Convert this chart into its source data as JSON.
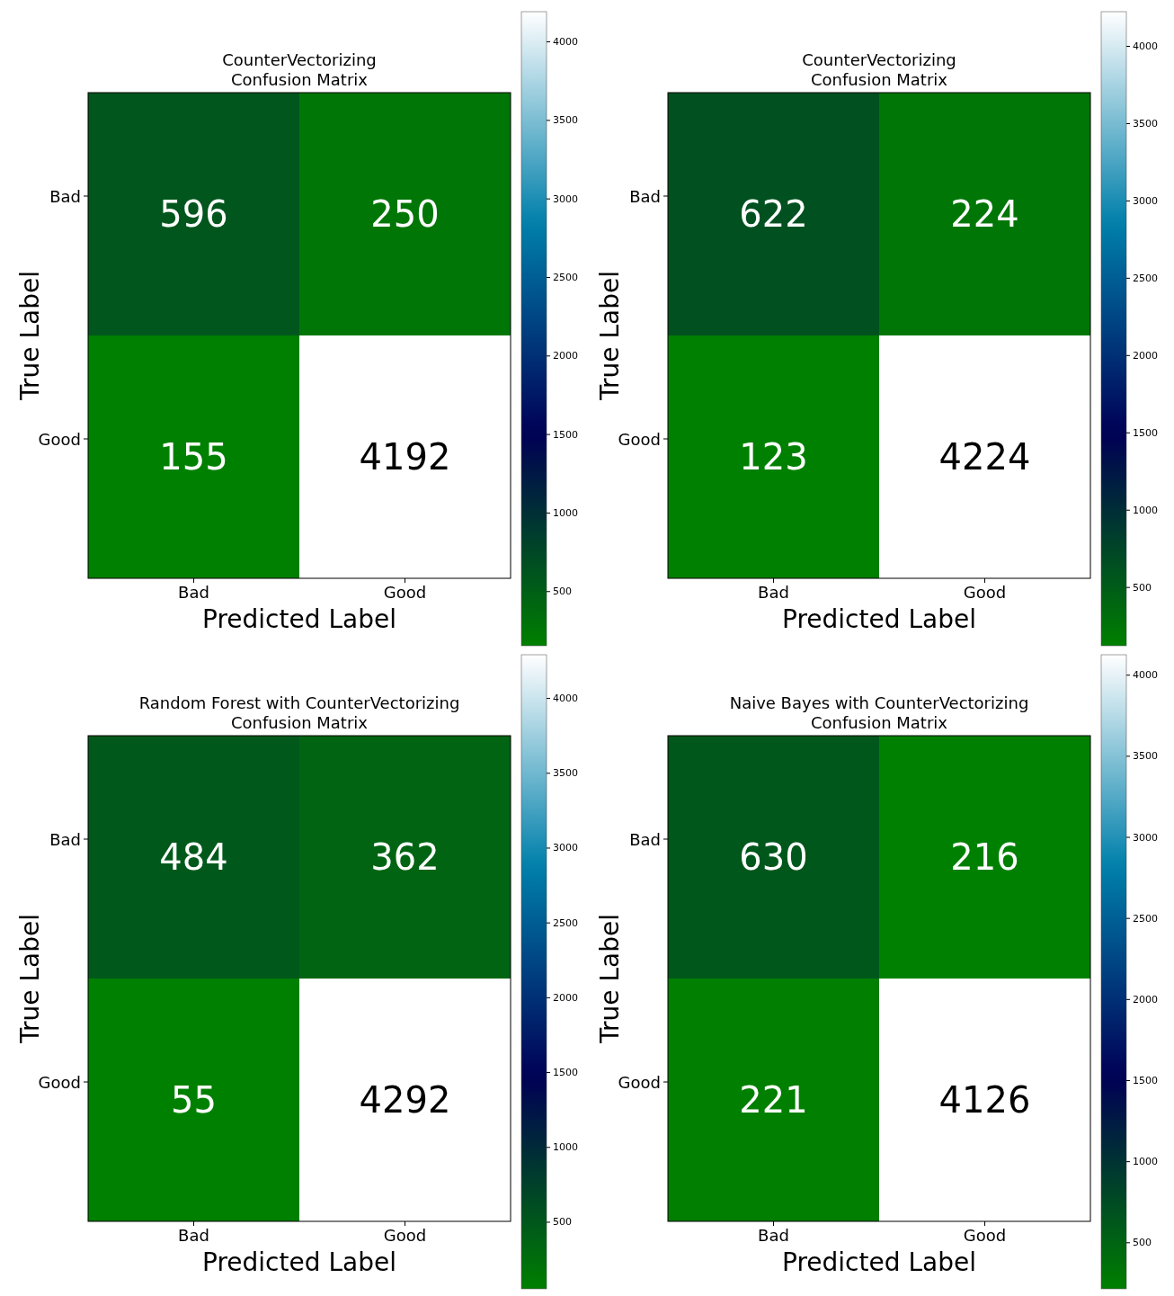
{
  "chart_data": [
    {
      "type": "heatmap",
      "title": "CounterVectorizing\nConfusion Matrix",
      "xlabel": "Predicted Label",
      "ylabel": "True Label",
      "categories": [
        "Bad",
        "Good"
      ],
      "y_categories": [
        "Bad",
        "Good"
      ],
      "cells": [
        [
          596,
          250
        ],
        [
          155,
          4192
        ]
      ],
      "clim": [
        155,
        4192
      ],
      "cticks": [
        500,
        1000,
        1500,
        2000,
        2500,
        3000,
        3500,
        4000
      ],
      "data_labels": true
    },
    {
      "type": "heatmap",
      "title": "CounterVectorizing\nConfusion Matrix",
      "xlabel": "Predicted Label",
      "ylabel": "True Label",
      "categories": [
        "Bad",
        "Good"
      ],
      "y_categories": [
        "Bad",
        "Good"
      ],
      "cells": [
        [
          622,
          224
        ],
        [
          123,
          4224
        ]
      ],
      "clim": [
        123,
        4224
      ],
      "cticks": [
        500,
        1000,
        1500,
        2000,
        2500,
        3000,
        3500,
        4000
      ],
      "data_labels": true
    },
    {
      "type": "heatmap",
      "title": "Random Forest with CounterVectorizing\nConfusion Matrix",
      "xlabel": "Predicted Label",
      "ylabel": "True Label",
      "categories": [
        "Bad",
        "Good"
      ],
      "y_categories": [
        "Bad",
        "Good"
      ],
      "cells": [
        [
          484,
          362
        ],
        [
          55,
          4292
        ]
      ],
      "clim": [
        55,
        4292
      ],
      "cticks": [
        500,
        1000,
        1500,
        2000,
        2500,
        3000,
        3500,
        4000
      ],
      "data_labels": true
    },
    {
      "type": "heatmap",
      "title": "Naive Bayes with CounterVectorizing\nConfusion Matrix",
      "xlabel": "Predicted Label",
      "ylabel": "True Label",
      "categories": [
        "Bad",
        "Good"
      ],
      "y_categories": [
        "Bad",
        "Good"
      ],
      "cells": [
        [
          630,
          216
        ],
        [
          221,
          4126
        ]
      ],
      "clim": [
        216,
        4126
      ],
      "cticks": [
        500,
        1000,
        1500,
        2000,
        2500,
        3000,
        3500,
        4000
      ],
      "data_labels": true
    }
  ]
}
